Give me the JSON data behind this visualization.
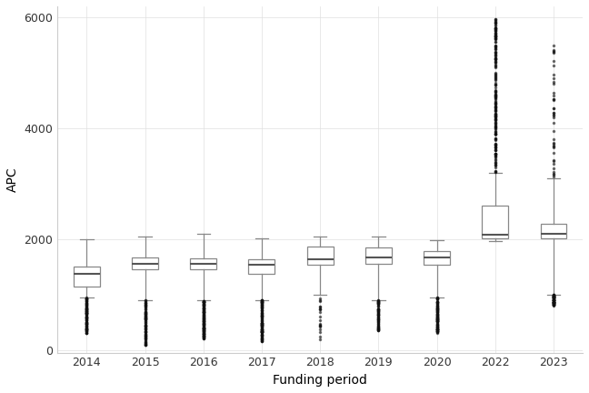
{
  "years": [
    2014,
    2015,
    2016,
    2017,
    2018,
    2019,
    2020,
    2022,
    2023
  ],
  "boxes": {
    "2014": {
      "q1": 1150,
      "median": 1380,
      "q3": 1500,
      "whisker_low": 950,
      "whisker_high": 2000,
      "n_outliers_low": 120,
      "low_min": 300,
      "low_max": 949,
      "n_outliers_high": 0,
      "high_min": 0,
      "high_max": 0
    },
    "2015": {
      "q1": 1460,
      "median": 1560,
      "q3": 1660,
      "whisker_low": 900,
      "whisker_high": 2050,
      "n_outliers_low": 100,
      "low_min": 80,
      "low_max": 899,
      "n_outliers_high": 0,
      "high_min": 0,
      "high_max": 0
    },
    "2016": {
      "q1": 1450,
      "median": 1550,
      "q3": 1650,
      "whisker_low": 900,
      "whisker_high": 2100,
      "n_outliers_low": 150,
      "low_min": 200,
      "low_max": 899,
      "n_outliers_high": 0,
      "high_min": 0,
      "high_max": 0
    },
    "2017": {
      "q1": 1380,
      "median": 1530,
      "q3": 1640,
      "whisker_low": 900,
      "whisker_high": 2020,
      "n_outliers_low": 130,
      "low_min": 150,
      "low_max": 899,
      "n_outliers_high": 0,
      "high_min": 0,
      "high_max": 0
    },
    "2018": {
      "q1": 1540,
      "median": 1640,
      "q3": 1870,
      "whisker_low": 1000,
      "whisker_high": 2050,
      "n_outliers_low": 20,
      "low_min": 150,
      "low_max": 999,
      "n_outliers_high": 0,
      "high_min": 0,
      "high_max": 0
    },
    "2019": {
      "q1": 1550,
      "median": 1670,
      "q3": 1850,
      "whisker_low": 900,
      "whisker_high": 2050,
      "n_outliers_low": 80,
      "low_min": 350,
      "low_max": 899,
      "n_outliers_high": 0,
      "high_min": 0,
      "high_max": 0
    },
    "2020": {
      "q1": 1540,
      "median": 1670,
      "q3": 1790,
      "whisker_low": 950,
      "whisker_high": 1980,
      "n_outliers_low": 120,
      "low_min": 300,
      "low_max": 949,
      "n_outliers_high": 0,
      "high_min": 0,
      "high_max": 0
    },
    "2022": {
      "q1": 2020,
      "median": 2080,
      "q3": 2600,
      "whisker_low": 1970,
      "whisker_high": 3200,
      "n_outliers_low": 0,
      "low_min": 0,
      "low_max": 0,
      "n_outliers_high": 200,
      "high_min": 3210,
      "high_max": 6000
    },
    "2023": {
      "q1": 2010,
      "median": 2100,
      "q3": 2280,
      "whisker_low": 1000,
      "whisker_high": 3100,
      "n_outliers_low": 80,
      "low_min": 800,
      "low_max": 999,
      "n_outliers_high": 40,
      "high_min": 3110,
      "high_max": 5500
    }
  },
  "ylabel": "APC",
  "xlabel": "Funding period",
  "ylim": [
    -50,
    6200
  ],
  "yticks": [
    0,
    2000,
    4000,
    6000
  ],
  "background_color": "#ffffff",
  "grid_color": "#e0e0e0",
  "box_color": "#ffffff",
  "box_edge_color": "#888888",
  "median_color": "#555555",
  "whisker_color": "#888888",
  "flier_color": "#111111",
  "flier_size": 1.5,
  "title_fontsize": 11,
  "axis_fontsize": 10,
  "tick_fontsize": 9
}
